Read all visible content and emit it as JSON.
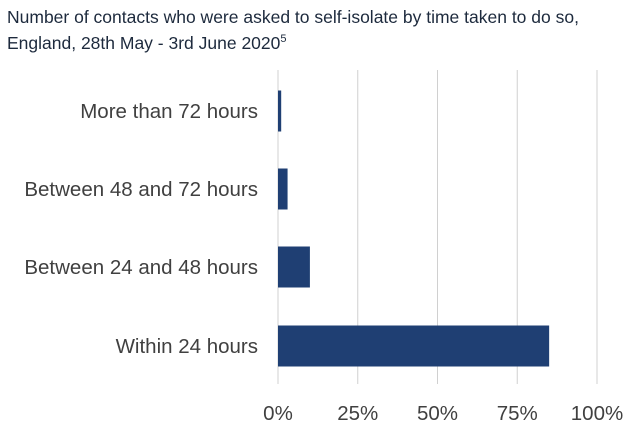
{
  "chart_data": {
    "type": "bar",
    "orientation": "horizontal",
    "title": "Number of contacts who were asked to self-isolate by time taken to do so, England, 28th May - 3rd June 2020",
    "title_footnote": "5",
    "categories": [
      "More than 72 hours",
      "Between 48 and 72 hours",
      "Between 24 and 48 hours",
      "Within 24 hours"
    ],
    "values": [
      1,
      3,
      10,
      85
    ],
    "unit": "%",
    "xlim": [
      0,
      100
    ],
    "xticks": [
      0,
      25,
      50,
      75,
      100
    ],
    "xtick_labels": [
      "0%",
      "25%",
      "50%",
      "75%",
      "100%"
    ],
    "grid": "vertical",
    "legend": "none",
    "bar_color": "#1f3f73"
  }
}
